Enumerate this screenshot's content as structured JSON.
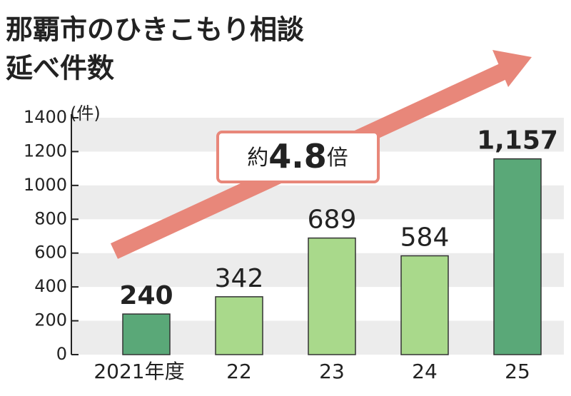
{
  "chart_data": {
    "type": "bar",
    "title": [
      "那覇市のひきこもり相談",
      "延べ件数"
    ],
    "y_unit": "(件)",
    "categories": [
      "2021年度",
      "22",
      "23",
      "24",
      "25"
    ],
    "values": [
      240,
      342,
      689,
      584,
      1157
    ],
    "value_labels": [
      "240",
      "342",
      "689",
      "584",
      "1,157"
    ],
    "value_label_bold": [
      true,
      false,
      false,
      false,
      true
    ],
    "colors": [
      "#5aa878",
      "#a9d98b",
      "#a9d98b",
      "#a9d98b",
      "#5aa878"
    ],
    "ylim": [
      0,
      1400
    ],
    "yticks": [
      0,
      200,
      400,
      600,
      800,
      1000,
      1200,
      1400
    ],
    "grid": "bands",
    "annotation": [
      "約",
      "4.8",
      "倍"
    ]
  }
}
